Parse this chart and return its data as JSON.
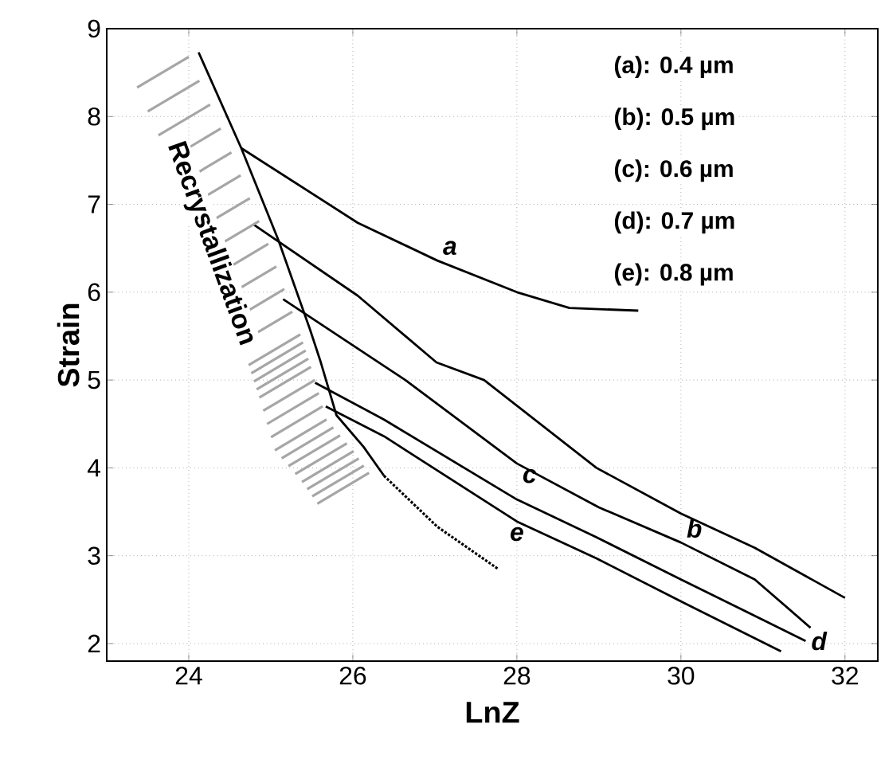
{
  "chart_data": {
    "type": "line",
    "xlabel": "LnZ",
    "ylabel": "Strain",
    "xlim": [
      23,
      32.4
    ],
    "ylim": [
      1.8,
      9
    ],
    "xticks": [
      24,
      26,
      28,
      30,
      32
    ],
    "yticks": [
      2,
      3,
      4,
      5,
      6,
      7,
      8,
      9
    ],
    "grid": true,
    "line_style": "solid",
    "annotations": [
      "(a): 0.4 µm",
      "(b): 0.5 µm",
      "(c): 0.6 µm",
      "(d): 0.7 µm",
      "(e): 0.8 µm",
      "Recrystallization"
    ],
    "series": [
      {
        "name": "a",
        "color": "#000000",
        "x": [
          24.64,
          26.06,
          27.03,
          28.0,
          28.64,
          29.48
        ],
        "values": [
          7.64,
          6.79,
          6.36,
          6.0,
          5.82,
          5.79
        ]
      },
      {
        "name": "b",
        "color": "#000000",
        "x": [
          24.79,
          26.06,
          27.02,
          27.6,
          28.97,
          30.0,
          30.9,
          32.0
        ],
        "values": [
          6.77,
          5.96,
          5.2,
          5.0,
          4.0,
          3.48,
          3.09,
          2.52
        ]
      },
      {
        "name": "c",
        "color": "#000000",
        "x": [
          25.15,
          26.64,
          28.0,
          29.0,
          30.0,
          30.9,
          31.58
        ],
        "values": [
          5.92,
          5.0,
          4.05,
          3.55,
          3.15,
          2.73,
          2.18
        ]
      },
      {
        "name": "d",
        "color": "#000000",
        "x": [
          25.54,
          26.38,
          28.0,
          28.97,
          30.0,
          31.52
        ],
        "values": [
          4.97,
          4.55,
          3.64,
          3.21,
          2.73,
          2.03
        ]
      },
      {
        "name": "e",
        "color": "#000000",
        "x": [
          25.67,
          26.38,
          28.0,
          28.97,
          30.0,
          31.22
        ],
        "values": [
          4.7,
          4.36,
          3.39,
          2.97,
          2.48,
          1.91
        ]
      },
      {
        "color": "#000000",
        "x": [
          24.12,
          24.64,
          25.09,
          25.48,
          25.61,
          25.8,
          26.13,
          26.38
        ],
        "values": [
          8.73,
          7.64,
          6.6,
          5.57,
          5.2,
          4.6,
          4.24,
          3.91
        ]
      },
      {
        "color": "#000000",
        "line_style": "dotted",
        "x": [
          26.38,
          27.03,
          27.77
        ],
        "values": [
          3.91,
          3.33,
          2.85
        ]
      }
    ]
  }
}
